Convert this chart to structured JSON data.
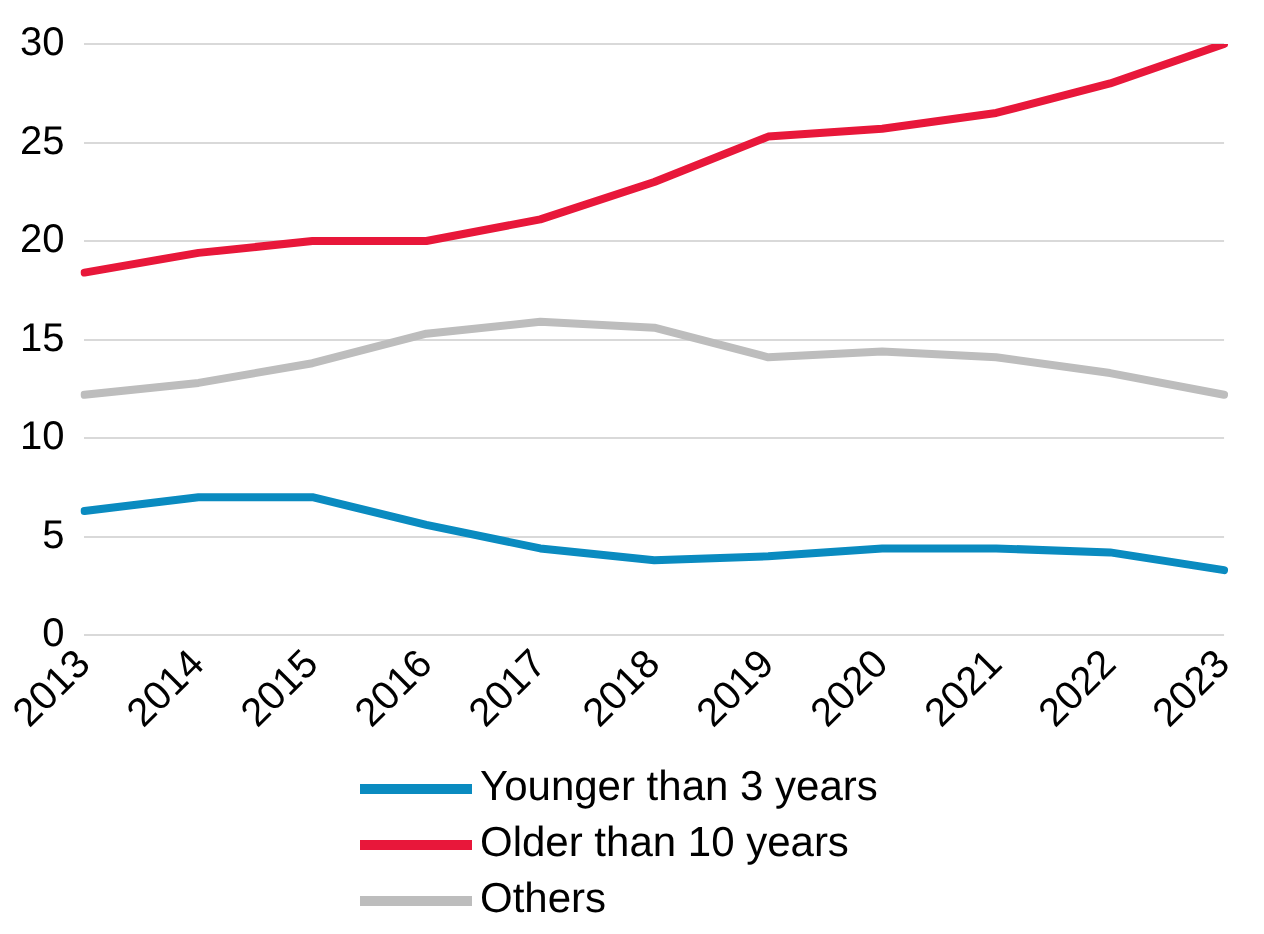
{
  "chart_data": {
    "type": "line",
    "categories": [
      "2013",
      "2014",
      "2015",
      "2016",
      "2017",
      "2018",
      "2019",
      "2020",
      "2021",
      "2022",
      "2023"
    ],
    "series": [
      {
        "name": "Younger than 3 years",
        "color": "#0a8bc0",
        "values": [
          6.3,
          7.0,
          7.0,
          5.6,
          4.4,
          3.8,
          4.0,
          4.4,
          4.4,
          4.2,
          3.3
        ]
      },
      {
        "name": "Older than 10 years",
        "color": "#e8173a",
        "values": [
          18.4,
          19.4,
          20.0,
          20.0,
          21.1,
          23.0,
          25.3,
          25.7,
          26.5,
          28.0,
          30.0
        ]
      },
      {
        "name": "Others",
        "color": "#bdbdbd",
        "values": [
          12.2,
          12.8,
          13.8,
          15.3,
          15.9,
          15.6,
          14.1,
          14.4,
          14.1,
          13.3,
          12.2
        ]
      }
    ],
    "ylim": [
      0,
      30
    ],
    "yticks": [
      0,
      5,
      10,
      15,
      20,
      25,
      30
    ],
    "grid": "y",
    "legend": "bottom",
    "marker": "none",
    "line_style": "solid"
  }
}
